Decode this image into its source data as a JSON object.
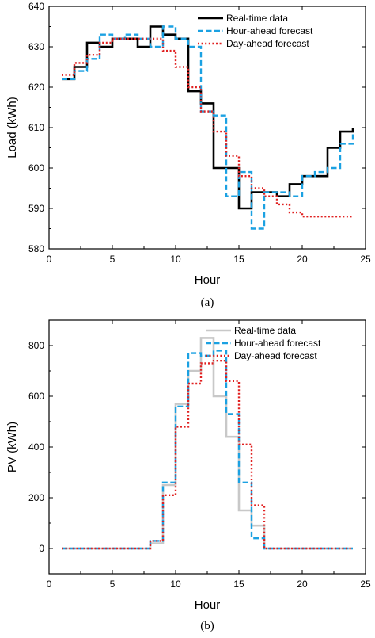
{
  "chart_data": [
    {
      "type": "line",
      "panel_label": "(a)",
      "xlabel": "Hour",
      "ylabel": "Load (kWh)",
      "xlim": [
        0,
        25
      ],
      "ylim": [
        580,
        640
      ],
      "xticks": [
        0,
        5,
        10,
        15,
        20,
        25
      ],
      "yticks": [
        580,
        590,
        600,
        610,
        620,
        630,
        640
      ],
      "grid": false,
      "legend_position": "top-right",
      "line_shape": "step",
      "x": [
        1,
        2,
        3,
        4,
        5,
        6,
        7,
        8,
        9,
        10,
        11,
        12,
        13,
        14,
        15,
        16,
        17,
        18,
        19,
        20,
        21,
        22,
        23,
        24
      ],
      "series": [
        {
          "name": "Real-time data",
          "color": "#000000",
          "dash": "solid",
          "values": [
            622,
            625,
            631,
            630,
            632,
            632,
            630,
            635,
            633,
            632,
            619,
            616,
            600,
            600,
            590,
            594,
            594,
            593,
            596,
            598,
            598,
            605,
            609,
            610
          ]
        },
        {
          "name": "Hour-ahead forecast",
          "color": "#1ba1e2",
          "dash": "dashed",
          "values": [
            622,
            624,
            627,
            633,
            632,
            633,
            632,
            630,
            635,
            632,
            630,
            614,
            613,
            593,
            599,
            585,
            594,
            594,
            593,
            598,
            599,
            600,
            606,
            609
          ]
        },
        {
          "name": "Day-ahead forecast",
          "color": "#e02020",
          "dash": "dotted",
          "values": [
            623,
            626,
            628,
            631,
            632,
            632,
            632,
            632,
            629,
            625,
            620,
            614,
            609,
            603,
            598,
            595,
            593,
            591,
            589,
            588,
            588,
            588,
            588,
            588
          ]
        }
      ]
    },
    {
      "type": "line",
      "panel_label": "(b)",
      "xlabel": "Hour",
      "ylabel": "PV (kWh)",
      "xlim": [
        0,
        25
      ],
      "ylim": [
        -100,
        900
      ],
      "xticks": [
        0,
        5,
        10,
        15,
        20,
        25
      ],
      "yticks": [
        0,
        200,
        400,
        600,
        800
      ],
      "grid": false,
      "legend_position": "top-right",
      "line_shape": "step",
      "x": [
        1,
        2,
        3,
        4,
        5,
        6,
        7,
        8,
        9,
        10,
        11,
        12,
        13,
        14,
        15,
        16,
        17,
        18,
        19,
        20,
        21,
        22,
        23,
        24
      ],
      "series": [
        {
          "name": "Real-time data",
          "color": "#c8c8c8",
          "dash": "solid",
          "values": [
            0,
            0,
            0,
            0,
            0,
            0,
            0,
            20,
            250,
            570,
            700,
            830,
            600,
            440,
            150,
            90,
            0,
            0,
            0,
            0,
            0,
            0,
            0,
            0
          ]
        },
        {
          "name": "Hour-ahead forecast",
          "color": "#1ba1e2",
          "dash": "dashed",
          "values": [
            0,
            0,
            0,
            0,
            0,
            0,
            0,
            30,
            260,
            560,
            770,
            760,
            780,
            530,
            260,
            40,
            0,
            0,
            0,
            0,
            0,
            0,
            0,
            0
          ]
        },
        {
          "name": "Day-ahead forecast",
          "color": "#e02020",
          "dash": "dotted",
          "values": [
            0,
            0,
            0,
            0,
            0,
            0,
            0,
            30,
            210,
            480,
            650,
            730,
            740,
            660,
            410,
            170,
            0,
            0,
            0,
            0,
            0,
            0,
            0,
            0
          ]
        }
      ]
    }
  ]
}
